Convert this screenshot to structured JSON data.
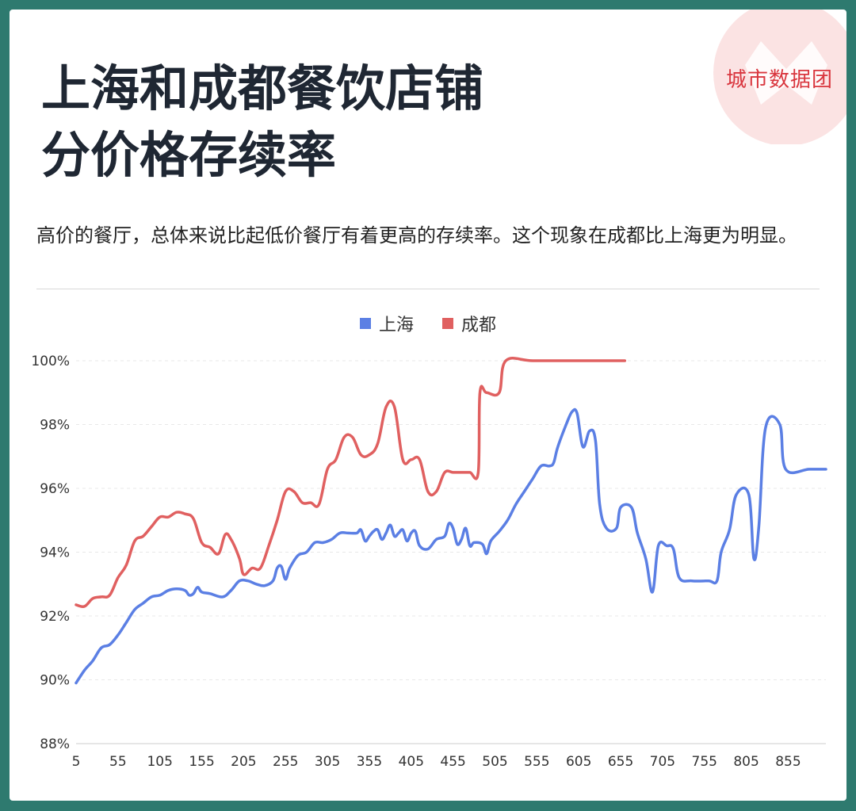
{
  "title_line1": "上海和成都餐饮店铺",
  "title_line2": "分价格存续率",
  "description": "高价的餐厅，总体来说比起低价餐厅有着更高的存续率。这个现象在成都比上海更为明显。",
  "logo_text": "城市数据团",
  "colors": {
    "shanghai": "#5b7fe4",
    "chengdu": "#e06060",
    "logo": "#fbe3e3"
  },
  "chart_data": {
    "type": "line",
    "legend_position": "top-center",
    "grid": true,
    "ylim": [
      88,
      100
    ],
    "xlim": [
      5,
      900
    ],
    "ytick_labels": [
      "88%",
      "90%",
      "92%",
      "94%",
      "96%",
      "98%",
      "100%"
    ],
    "yticks": [
      88,
      90,
      92,
      94,
      96,
      98,
      100
    ],
    "xtick_labels": [
      "5",
      "55",
      "105",
      "155",
      "205",
      "255",
      "305",
      "355",
      "405",
      "455",
      "505",
      "555",
      "605",
      "655",
      "705",
      "755",
      "805",
      "855"
    ],
    "xticks": [
      5,
      55,
      105,
      155,
      205,
      255,
      305,
      355,
      405,
      455,
      505,
      555,
      605,
      655,
      705,
      755,
      805,
      855
    ],
    "series": [
      {
        "name": "上海",
        "color": "#5b7fe4",
        "points": [
          [
            5,
            89.9
          ],
          [
            15,
            90.3
          ],
          [
            25,
            90.6
          ],
          [
            35,
            91.0
          ],
          [
            45,
            91.1
          ],
          [
            55,
            91.4
          ],
          [
            65,
            91.8
          ],
          [
            75,
            92.2
          ],
          [
            85,
            92.4
          ],
          [
            95,
            92.6
          ],
          [
            105,
            92.65
          ],
          [
            115,
            92.8
          ],
          [
            125,
            92.85
          ],
          [
            135,
            92.8
          ],
          [
            140,
            92.65
          ],
          [
            145,
            92.7
          ],
          [
            150,
            92.9
          ],
          [
            155,
            92.75
          ],
          [
            165,
            92.7
          ],
          [
            180,
            92.6
          ],
          [
            190,
            92.8
          ],
          [
            200,
            93.1
          ],
          [
            210,
            93.1
          ],
          [
            220,
            93.0
          ],
          [
            230,
            92.95
          ],
          [
            240,
            93.1
          ],
          [
            245,
            93.5
          ],
          [
            250,
            93.55
          ],
          [
            255,
            93.15
          ],
          [
            260,
            93.5
          ],
          [
            270,
            93.9
          ],
          [
            280,
            94.0
          ],
          [
            290,
            94.3
          ],
          [
            300,
            94.3
          ],
          [
            310,
            94.4
          ],
          [
            320,
            94.6
          ],
          [
            330,
            94.6
          ],
          [
            340,
            94.6
          ],
          [
            345,
            94.7
          ],
          [
            350,
            94.35
          ],
          [
            355,
            94.5
          ],
          [
            360,
            94.65
          ],
          [
            365,
            94.7
          ],
          [
            370,
            94.4
          ],
          [
            375,
            94.6
          ],
          [
            380,
            94.85
          ],
          [
            385,
            94.5
          ],
          [
            390,
            94.6
          ],
          [
            395,
            94.7
          ],
          [
            400,
            94.35
          ],
          [
            405,
            94.6
          ],
          [
            410,
            94.65
          ],
          [
            415,
            94.2
          ],
          [
            425,
            94.1
          ],
          [
            435,
            94.4
          ],
          [
            445,
            94.5
          ],
          [
            450,
            94.9
          ],
          [
            455,
            94.75
          ],
          [
            460,
            94.25
          ],
          [
            465,
            94.4
          ],
          [
            470,
            94.75
          ],
          [
            475,
            94.2
          ],
          [
            480,
            94.3
          ],
          [
            490,
            94.25
          ],
          [
            495,
            93.95
          ],
          [
            500,
            94.35
          ],
          [
            510,
            94.65
          ],
          [
            520,
            95.0
          ],
          [
            530,
            95.5
          ],
          [
            540,
            95.9
          ],
          [
            550,
            96.3
          ],
          [
            560,
            96.7
          ],
          [
            570,
            96.7
          ],
          [
            575,
            96.8
          ],
          [
            580,
            97.3
          ],
          [
            590,
            98.0
          ],
          [
            597,
            98.4
          ],
          [
            603,
            98.35
          ],
          [
            610,
            97.3
          ],
          [
            618,
            97.8
          ],
          [
            625,
            97.5
          ],
          [
            630,
            95.5
          ],
          [
            638,
            94.75
          ],
          [
            650,
            94.75
          ],
          [
            655,
            95.4
          ],
          [
            668,
            95.4
          ],
          [
            675,
            94.6
          ],
          [
            685,
            93.8
          ],
          [
            693,
            92.75
          ],
          [
            700,
            94.2
          ],
          [
            710,
            94.2
          ],
          [
            718,
            94.1
          ],
          [
            725,
            93.2
          ],
          [
            740,
            93.1
          ],
          [
            760,
            93.1
          ],
          [
            770,
            93.1
          ],
          [
            775,
            94.0
          ],
          [
            785,
            94.7
          ],
          [
            793,
            95.8
          ],
          [
            808,
            95.8
          ],
          [
            814,
            93.8
          ],
          [
            820,
            94.8
          ],
          [
            828,
            97.9
          ],
          [
            845,
            98.0
          ],
          [
            852,
            96.6
          ],
          [
            880,
            96.6
          ],
          [
            900,
            96.6
          ]
        ]
      },
      {
        "name": "成都",
        "color": "#e06060",
        "points": [
          [
            5,
            92.35
          ],
          [
            15,
            92.3
          ],
          [
            25,
            92.55
          ],
          [
            35,
            92.6
          ],
          [
            45,
            92.65
          ],
          [
            55,
            93.2
          ],
          [
            65,
            93.6
          ],
          [
            75,
            94.35
          ],
          [
            85,
            94.5
          ],
          [
            95,
            94.8
          ],
          [
            105,
            95.1
          ],
          [
            115,
            95.1
          ],
          [
            125,
            95.25
          ],
          [
            135,
            95.2
          ],
          [
            145,
            95.05
          ],
          [
            155,
            94.3
          ],
          [
            165,
            94.15
          ],
          [
            175,
            93.95
          ],
          [
            183,
            94.55
          ],
          [
            190,
            94.4
          ],
          [
            200,
            93.8
          ],
          [
            205,
            93.3
          ],
          [
            215,
            93.5
          ],
          [
            225,
            93.5
          ],
          [
            235,
            94.2
          ],
          [
            245,
            95.0
          ],
          [
            255,
            95.9
          ],
          [
            265,
            95.9
          ],
          [
            275,
            95.55
          ],
          [
            285,
            95.55
          ],
          [
            295,
            95.5
          ],
          [
            305,
            96.6
          ],
          [
            315,
            96.9
          ],
          [
            325,
            97.6
          ],
          [
            335,
            97.6
          ],
          [
            345,
            97.05
          ],
          [
            355,
            97.05
          ],
          [
            365,
            97.4
          ],
          [
            375,
            98.55
          ],
          [
            385,
            98.55
          ],
          [
            395,
            96.9
          ],
          [
            405,
            96.9
          ],
          [
            415,
            96.9
          ],
          [
            425,
            95.9
          ],
          [
            435,
            95.9
          ],
          [
            445,
            96.5
          ],
          [
            455,
            96.5
          ],
          [
            465,
            96.5
          ],
          [
            475,
            96.5
          ],
          [
            485,
            96.5
          ],
          [
            487,
            99.0
          ],
          [
            495,
            99.0
          ],
          [
            510,
            99.0
          ],
          [
            518,
            100.0
          ],
          [
            550,
            100.0
          ],
          [
            600,
            100.0
          ],
          [
            660,
            100.0
          ]
        ]
      }
    ]
  }
}
